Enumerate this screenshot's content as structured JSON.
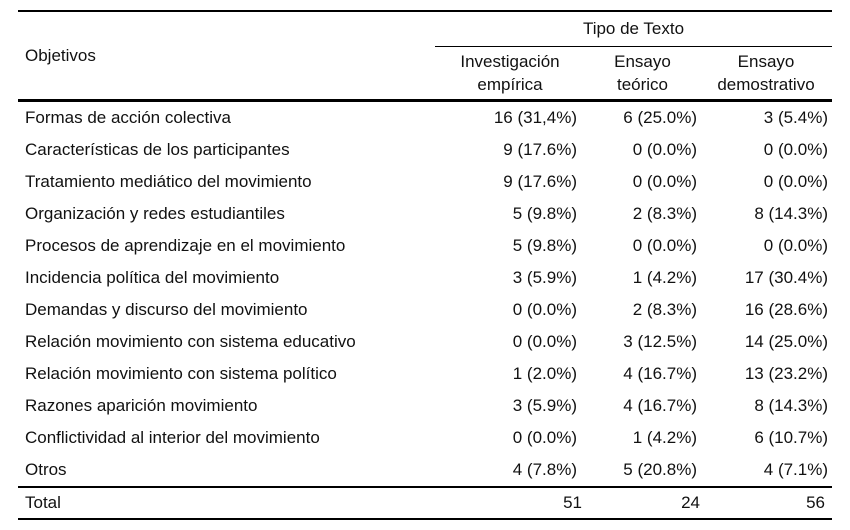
{
  "table": {
    "group_header": "Tipo de Texto",
    "row_header": "Objetivos",
    "columns": [
      {
        "line1": "Investigación",
        "line2": "empírica"
      },
      {
        "line1": "Ensayo",
        "line2": "teórico"
      },
      {
        "line1": "Ensayo",
        "line2": "demostrativo"
      }
    ],
    "rows": [
      {
        "label": "Formas de acción colectiva",
        "values": [
          "16 (31,4%)",
          "6 (25.0%)",
          "3 (5.4%)"
        ]
      },
      {
        "label": "Características de los participantes",
        "values": [
          "9 (17.6%)",
          "0 (0.0%)",
          "0 (0.0%)"
        ]
      },
      {
        "label": "Tratamiento mediático del movimiento",
        "values": [
          "9 (17.6%)",
          "0 (0.0%)",
          "0 (0.0%)"
        ]
      },
      {
        "label": "Organización y redes estudiantiles",
        "values": [
          "5 (9.8%)",
          "2 (8.3%)",
          "8 (14.3%)"
        ]
      },
      {
        "label": "Procesos de aprendizaje en el movimiento",
        "values": [
          "5 (9.8%)",
          "0 (0.0%)",
          "0 (0.0%)"
        ]
      },
      {
        "label": "Incidencia política del movimiento",
        "values": [
          "3 (5.9%)",
          "1 (4.2%)",
          "17 (30.4%)"
        ]
      },
      {
        "label": "Demandas y discurso del movimiento",
        "values": [
          "0 (0.0%)",
          "2 (8.3%)",
          "16 (28.6%)"
        ]
      },
      {
        "label": "Relación movimiento con sistema educativo",
        "values": [
          "0 (0.0%)",
          "3 (12.5%)",
          "14 (25.0%)"
        ]
      },
      {
        "label": "Relación movimiento con sistema político",
        "values": [
          "1 (2.0%)",
          "4 (16.7%)",
          "13 (23.2%)"
        ]
      },
      {
        "label": "Razones aparición movimiento",
        "values": [
          "3 (5.9%)",
          "4 (16.7%)",
          "8 (14.3%)"
        ]
      },
      {
        "label": "Conflictividad al interior del movimiento",
        "values": [
          "0 (0.0%)",
          "1 (4.2%)",
          "6 (10.7%)"
        ]
      },
      {
        "label": "Otros",
        "values": [
          "4 (7.8%)",
          "5 (20.8%)",
          "4 (7.1%)"
        ]
      }
    ],
    "total": {
      "label": "Total",
      "values": [
        "51",
        "24",
        "56"
      ]
    }
  }
}
